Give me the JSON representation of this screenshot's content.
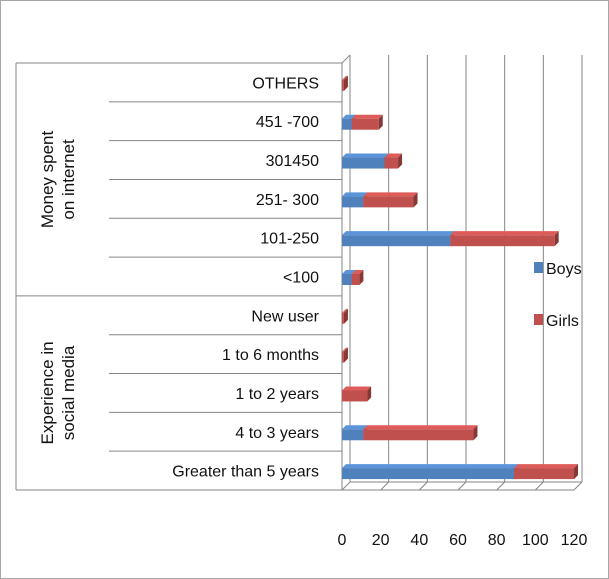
{
  "chart_data": {
    "type": "bar",
    "orientation": "horizontal",
    "stacked": true,
    "style": "3d",
    "groups": [
      {
        "label": "Money spent on internet",
        "categories": [
          "OTHERS",
          "451 -700",
          "301450",
          "251- 300",
          "101-250",
          "<100"
        ]
      },
      {
        "label": "Experience in social media",
        "categories": [
          "New user",
          "1 to 6 months",
          "1 to 2 years",
          "4 to 3 years",
          "Greater than 5 years"
        ]
      }
    ],
    "categories": [
      "OTHERS",
      "451 -700",
      "301450",
      "251- 300",
      "101-250",
      "<100",
      "New user",
      "1 to 6 months",
      "1 to 2 years",
      "4 to 3 years",
      "Greater than 5 years"
    ],
    "series": [
      {
        "name": "Boys",
        "color": "#4f81bd",
        "values": [
          0,
          5,
          22,
          11,
          56,
          5,
          0,
          0,
          0,
          11,
          89
        ]
      },
      {
        "name": "Girls",
        "color": "#c0504d",
        "values": [
          1,
          14,
          7,
          26,
          54,
          4,
          1,
          1,
          13,
          57,
          31
        ]
      }
    ],
    "xlim": [
      0,
      120
    ],
    "xticks": [
      "0",
      "20",
      "40",
      "60",
      "80",
      "100",
      "120"
    ],
    "grid": true,
    "legend_position": "right"
  }
}
